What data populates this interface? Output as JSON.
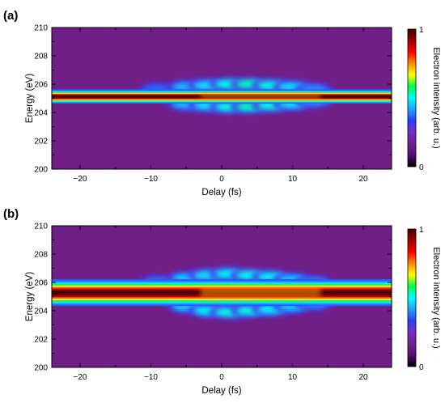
{
  "chart_data": [
    {
      "type": "heatmap",
      "panel_label": "(a)",
      "xlabel": "Delay (fs)",
      "ylabel": "Energy (eV)",
      "xlim": [
        -24,
        24
      ],
      "ylim": [
        200,
        210
      ],
      "xticks": [
        -20,
        -10,
        0,
        10,
        20
      ],
      "yticks": [
        200,
        202,
        204,
        206,
        208,
        210
      ],
      "colorbar": {
        "label": "Electron intensity (arb. u.)",
        "min": 0,
        "max": 1,
        "ticks": [
          "0",
          "1"
        ]
      },
      "colors": [
        "#000000",
        "#5a0a78",
        "#6e2196",
        "#7a2ec8",
        "#2a3cff",
        "#22a0ff",
        "#00ffff",
        "#00ff44",
        "#ffff00",
        "#ff8c00",
        "#ff0000",
        "#a00000",
        "#400000"
      ],
      "background_color": "#701f87",
      "main_line_energy": 205.15,
      "main_line_width": 0.22,
      "sidebands": [
        {
          "delay": -9,
          "energy": 205.6,
          "intensity": 0.2
        },
        {
          "delay": -5,
          "energy": 205.8,
          "intensity": 0.4
        },
        {
          "delay": -2,
          "energy": 205.9,
          "intensity": 0.5
        },
        {
          "delay": 1,
          "energy": 206.0,
          "intensity": 0.6
        },
        {
          "delay": 4,
          "energy": 206.0,
          "intensity": 0.65
        },
        {
          "delay": 7,
          "energy": 205.9,
          "intensity": 0.6
        },
        {
          "delay": 10,
          "energy": 205.8,
          "intensity": 0.5
        },
        {
          "delay": 13,
          "energy": 205.6,
          "intensity": 0.3
        },
        {
          "delay": -5,
          "energy": 204.6,
          "intensity": 0.4
        },
        {
          "delay": -2,
          "energy": 204.5,
          "intensity": 0.5
        },
        {
          "delay": 1,
          "energy": 204.4,
          "intensity": 0.6
        },
        {
          "delay": 4,
          "energy": 204.4,
          "intensity": 0.65
        },
        {
          "delay": 7,
          "energy": 204.5,
          "intensity": 0.6
        },
        {
          "delay": 10,
          "energy": 204.6,
          "intensity": 0.5
        },
        {
          "delay": 13,
          "energy": 204.8,
          "intensity": 0.3
        }
      ]
    },
    {
      "type": "heatmap",
      "panel_label": "(b)",
      "xlabel": "Delay (fs)",
      "ylabel": "Energy (eV)",
      "xlim": [
        -24,
        24
      ],
      "ylim": [
        200,
        210
      ],
      "xticks": [
        -20,
        -10,
        0,
        10,
        20
      ],
      "yticks": [
        200,
        202,
        204,
        206,
        208,
        210
      ],
      "colorbar": {
        "label": "Electron intensity (arb. u.)",
        "min": 0,
        "max": 1,
        "ticks": [
          "0",
          "1"
        ]
      },
      "colors": [
        "#000000",
        "#5a0a78",
        "#6e2196",
        "#7a2ec8",
        "#2a3cff",
        "#22a0ff",
        "#00ffff",
        "#00ff44",
        "#ffff00",
        "#ff8c00",
        "#ff0000",
        "#a00000",
        "#400000"
      ],
      "background_color": "#701f87",
      "main_line_energy": 205.3,
      "main_line_width": 0.42,
      "sidebands": [
        {
          "delay": -9,
          "energy": 206.0,
          "intensity": 0.25
        },
        {
          "delay": -5,
          "energy": 206.3,
          "intensity": 0.45
        },
        {
          "delay": -2,
          "energy": 206.5,
          "intensity": 0.5
        },
        {
          "delay": 1,
          "energy": 206.6,
          "intensity": 0.55
        },
        {
          "delay": 4,
          "energy": 206.5,
          "intensity": 0.6
        },
        {
          "delay": 7,
          "energy": 206.4,
          "intensity": 0.55
        },
        {
          "delay": 10,
          "energy": 206.2,
          "intensity": 0.45
        },
        {
          "delay": 13,
          "energy": 206.0,
          "intensity": 0.3
        },
        {
          "delay": -5,
          "energy": 204.3,
          "intensity": 0.45
        },
        {
          "delay": -2,
          "energy": 204.0,
          "intensity": 0.55
        },
        {
          "delay": 1,
          "energy": 203.9,
          "intensity": 0.6
        },
        {
          "delay": 4,
          "energy": 204.0,
          "intensity": 0.6
        },
        {
          "delay": 7,
          "energy": 204.1,
          "intensity": 0.55
        },
        {
          "delay": 10,
          "energy": 204.3,
          "intensity": 0.45
        },
        {
          "delay": 13,
          "energy": 204.5,
          "intensity": 0.3
        }
      ]
    }
  ]
}
